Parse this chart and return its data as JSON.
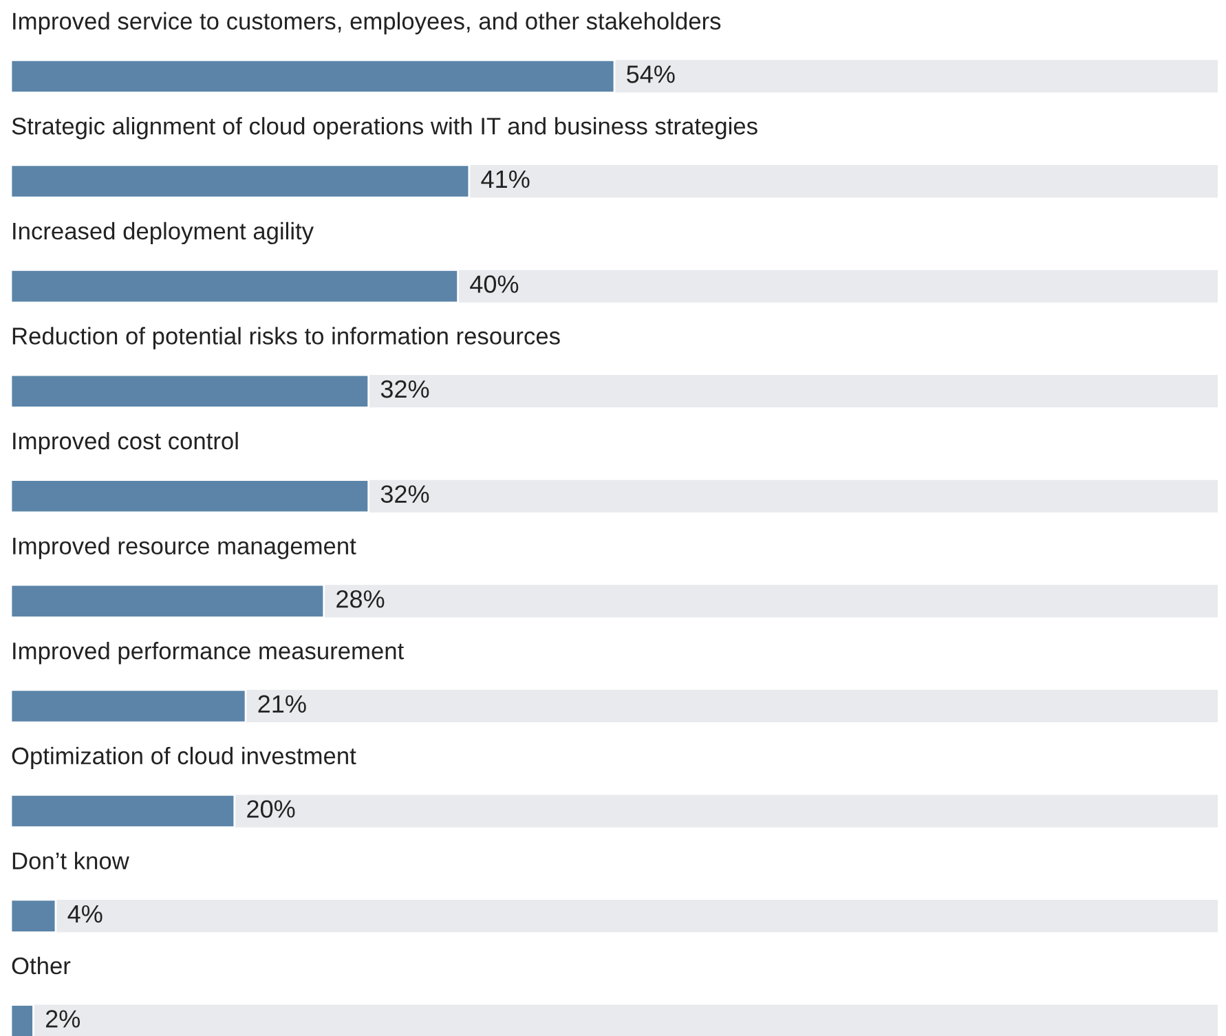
{
  "chart_data": {
    "type": "bar",
    "orientation": "horizontal",
    "categories": [
      "Improved service to customers, employees, and other stakeholders",
      "Strategic alignment of cloud operations with IT and business strategies",
      "Increased deployment agility",
      "Reduction of potential risks to information resources",
      "Improved cost control",
      "Improved resource management",
      "Improved performance measurement",
      "Optimization of cloud investment",
      "Don’t know",
      "Other"
    ],
    "values": [
      54,
      41,
      40,
      32,
      32,
      28,
      21,
      20,
      4,
      2
    ],
    "value_labels": [
      "54%",
      "41%",
      "40%",
      "32%",
      "32%",
      "28%",
      "21%",
      "20%",
      "4%",
      "2%"
    ],
    "color": "#5b84a8",
    "xlim": [
      0,
      108
    ]
  }
}
